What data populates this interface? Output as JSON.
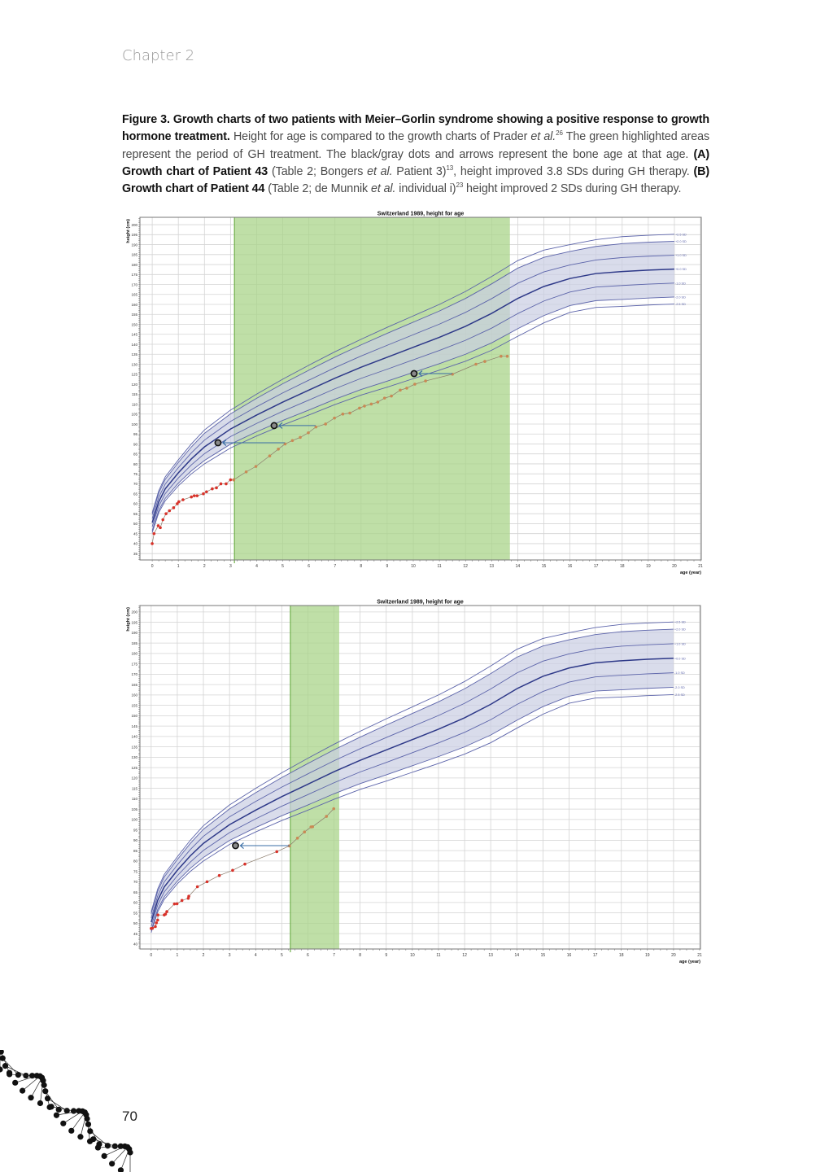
{
  "header": {
    "chapter": "Chapter 2"
  },
  "caption": {
    "segments": [
      {
        "text": "Figure 3. Growth charts of two patients with Meier–Gorlin syndrome showing a positive response to growth hormone treatment.",
        "style": "bold"
      },
      {
        "text": " Height for age is compared to the growth charts of Prader ",
        "style": "normal"
      },
      {
        "text": "et al.",
        "style": "italic"
      },
      {
        "text": "26",
        "style": "sup"
      },
      {
        "text": " The green highlighted areas represent the period of GH treatment. The black/gray dots and arrows represent the bone age at that age. ",
        "style": "normal"
      },
      {
        "text": "(A) Growth chart of Patient 43",
        "style": "bold"
      },
      {
        "text": " (Table 2; Bongers ",
        "style": "normal"
      },
      {
        "text": "et al.",
        "style": "italic"
      },
      {
        "text": " Patient 3)",
        "style": "normal"
      },
      {
        "text": "13",
        "style": "sup"
      },
      {
        "text": ", height improved 3.8 SDs during GH therapy. ",
        "style": "normal"
      },
      {
        "text": "(B) Growth chart of Patient 44",
        "style": "bold"
      },
      {
        "text": " (Table 2; de Munnik ",
        "style": "normal"
      },
      {
        "text": "et al.",
        "style": "italic"
      },
      {
        "text": " individual i)",
        "style": "normal"
      },
      {
        "text": "23",
        "style": "sup"
      },
      {
        "text": " height improved 2 SDs during GH therapy.",
        "style": "normal"
      }
    ]
  },
  "page_number": "70",
  "colors": {
    "treatment_band": "#a9d48a",
    "sd_band": "#c9cde2",
    "sd_line": "#5c64aa",
    "mean_line": "#2d3888",
    "pre_treatment_dots": "#d8322a",
    "treatment_dots": "#c98a55",
    "bone_age_marker": "#8a8a8a",
    "arrow": "#3a6ea5"
  },
  "chart_data": [
    {
      "panel": "A",
      "type": "line",
      "title": "Switzerland 1989, height for age",
      "xlabel": "age (year)",
      "ylabel": "height (cm)",
      "xlim": [
        -0.47,
        21.03
      ],
      "ylim": [
        31.8,
        203.7
      ],
      "xticks": [
        0,
        1,
        2,
        3,
        4,
        5,
        6,
        7,
        8,
        9,
        10,
        11,
        12,
        13,
        14,
        15,
        16,
        17,
        18,
        19,
        20,
        21
      ],
      "yticks": [
        35,
        40,
        45,
        50,
        55,
        60,
        65,
        70,
        75,
        80,
        85,
        90,
        95,
        100,
        105,
        110,
        115,
        120,
        125,
        130,
        135,
        140,
        145,
        150,
        155,
        160,
        165,
        170,
        175,
        180,
        185,
        190,
        195,
        200
      ],
      "grid": true,
      "gh_treatment_period": [
        3.15,
        13.7
      ],
      "reference": {
        "age": [
          0,
          0.25,
          0.5,
          1,
          1.5,
          2,
          3,
          4,
          5,
          6,
          7,
          8,
          9,
          10,
          11,
          12,
          13,
          14,
          15,
          16,
          17,
          18,
          19,
          20
        ],
        "mean_cm": [
          50.5,
          61,
          67.5,
          75.5,
          82.5,
          88.5,
          97.5,
          104.5,
          111,
          117,
          123,
          128.5,
          133.5,
          138.5,
          143.5,
          149,
          155.5,
          163,
          169,
          173,
          175.5,
          176.5,
          177.2,
          177.7
        ],
        "sd_cm": [
          2.0,
          2.2,
          2.4,
          2.6,
          3.0,
          3.4,
          3.8,
          4.2,
          4.6,
          5.0,
          5.3,
          5.6,
          6.0,
          6.3,
          6.6,
          7.0,
          7.4,
          7.6,
          7.3,
          6.8,
          6.8,
          7.0,
          7.0,
          7.0
        ],
        "sd_lines": [
          {
            "label": "+2.5 SD",
            "z": 2.5
          },
          {
            "label": "+2.0 SD",
            "z": 2.0
          },
          {
            "label": "+1.0 SD",
            "z": 1.0
          },
          {
            "label": "+0.0 SD",
            "z": 0
          },
          {
            "label": "-1.0 SD",
            "z": -1.0
          },
          {
            "label": "-2.0 SD",
            "z": -2.0
          },
          {
            "label": "-2.5 SD",
            "z": -2.5
          }
        ]
      },
      "pre_treatment": [
        [
          0,
          40
        ],
        [
          0.07,
          45
        ],
        [
          0.23,
          49
        ],
        [
          0.31,
          48
        ],
        [
          0.41,
          52
        ],
        [
          0.53,
          55
        ],
        [
          0.66,
          56.5
        ],
        [
          0.82,
          58
        ],
        [
          0.96,
          60
        ],
        [
          1.02,
          61
        ],
        [
          1.18,
          62
        ],
        [
          1.5,
          63.4
        ],
        [
          1.61,
          64
        ],
        [
          1.72,
          64
        ],
        [
          1.96,
          65
        ],
        [
          2.08,
          66
        ],
        [
          2.3,
          67.5
        ],
        [
          2.46,
          68
        ],
        [
          2.63,
          70
        ],
        [
          2.83,
          70
        ],
        [
          3.0,
          72
        ],
        [
          3.12,
          72
        ]
      ],
      "treatment": [
        [
          3.12,
          72
        ],
        [
          3.6,
          76
        ],
        [
          3.97,
          78.7
        ],
        [
          4.5,
          84
        ],
        [
          4.83,
          87.4
        ],
        [
          5.09,
          90
        ],
        [
          5.37,
          91.7
        ],
        [
          5.67,
          93.3
        ],
        [
          5.98,
          95.6
        ],
        [
          6.27,
          98.5
        ],
        [
          6.64,
          100
        ],
        [
          6.98,
          103
        ],
        [
          7.3,
          105
        ],
        [
          7.57,
          105.5
        ],
        [
          7.94,
          108
        ],
        [
          8.13,
          109
        ],
        [
          8.39,
          110
        ],
        [
          8.64,
          111
        ],
        [
          8.9,
          113
        ],
        [
          9.16,
          114
        ],
        [
          9.5,
          117
        ],
        [
          9.75,
          118
        ],
        [
          10.06,
          120
        ],
        [
          10.47,
          121.6
        ],
        [
          11.5,
          125
        ],
        [
          12.4,
          130
        ],
        [
          12.74,
          131.4
        ],
        [
          13.36,
          134
        ],
        [
          13.6,
          134
        ]
      ],
      "bone_age": [
        {
          "chronological_age": 5.08,
          "bone_age": 2.52,
          "height": 90.6
        },
        {
          "chronological_age": 6.26,
          "bone_age": 4.67,
          "height": 99.2
        },
        {
          "chronological_age": 11.5,
          "bone_age": 10.03,
          "height": 125.3
        }
      ]
    },
    {
      "panel": "B",
      "type": "line",
      "title": "Switzerland 1989, height for age",
      "xlabel": "age (year)",
      "ylabel": "height (cm)",
      "xlim": [
        -0.43,
        21.03
      ],
      "ylim": [
        37.6,
        203.1
      ],
      "xticks": [
        0,
        1,
        2,
        3,
        4,
        5,
        6,
        7,
        8,
        9,
        10,
        11,
        12,
        13,
        14,
        15,
        16,
        17,
        18,
        19,
        20,
        21
      ],
      "yticks": [
        40,
        45,
        50,
        55,
        60,
        65,
        70,
        75,
        80,
        85,
        90,
        95,
        100,
        105,
        110,
        115,
        120,
        125,
        130,
        135,
        140,
        145,
        150,
        155,
        160,
        165,
        170,
        175,
        180,
        185,
        190,
        195,
        200
      ],
      "grid": true,
      "gh_treatment_period": [
        5.33,
        7.2
      ],
      "reference": {
        "age": [
          0,
          0.25,
          0.5,
          1,
          1.5,
          2,
          3,
          4,
          5,
          6,
          7,
          8,
          9,
          10,
          11,
          12,
          13,
          14,
          15,
          16,
          17,
          18,
          19,
          20
        ],
        "mean_cm": [
          50.5,
          61,
          67.5,
          75.5,
          82.5,
          88.5,
          97.5,
          104.5,
          111,
          117,
          123,
          128.5,
          133.5,
          138.5,
          143.5,
          149,
          155.5,
          163,
          169,
          173,
          175.5,
          176.5,
          177.2,
          177.7
        ],
        "sd_cm": [
          2.0,
          2.2,
          2.4,
          2.6,
          3.0,
          3.4,
          3.8,
          4.2,
          4.6,
          5.0,
          5.3,
          5.6,
          6.0,
          6.3,
          6.6,
          7.0,
          7.4,
          7.6,
          7.3,
          6.8,
          6.8,
          7.0,
          7.0,
          7.0
        ],
        "sd_lines": [
          {
            "label": "+2.5 SD",
            "z": 2.5
          },
          {
            "label": "+2.0 SD",
            "z": 2.0
          },
          {
            "label": "+1.0 SD",
            "z": 1.0
          },
          {
            "label": "+0.0 SD",
            "z": 0
          },
          {
            "label": "-1.0 SD",
            "z": -1.0
          },
          {
            "label": "-2.0 SD",
            "z": -2.0
          },
          {
            "label": "-2.5 SD",
            "z": -2.5
          }
        ]
      },
      "pre_treatment": [
        [
          0,
          47.5
        ],
        [
          0.05,
          47.6
        ],
        [
          0.16,
          48.4
        ],
        [
          0.2,
          50.2
        ],
        [
          0.25,
          51.5
        ],
        [
          0.26,
          54
        ],
        [
          0.5,
          54
        ],
        [
          0.55,
          54.4
        ],
        [
          0.6,
          55.6
        ],
        [
          0.89,
          59.3
        ],
        [
          0.99,
          59.4
        ],
        [
          1.18,
          61
        ],
        [
          1.42,
          62
        ],
        [
          1.44,
          63
        ],
        [
          1.77,
          67.6
        ],
        [
          2.14,
          70
        ],
        [
          2.61,
          73
        ],
        [
          3.12,
          75.5
        ],
        [
          3.59,
          78.5
        ],
        [
          4.81,
          84.5
        ],
        [
          5.29,
          87.3
        ]
      ],
      "treatment": [
        [
          5.29,
          87.3
        ],
        [
          5.6,
          91
        ],
        [
          5.87,
          94
        ],
        [
          6.12,
          96.4
        ],
        [
          6.18,
          96.5
        ],
        [
          6.71,
          101.5
        ],
        [
          6.99,
          105.2
        ]
      ],
      "bone_age": [
        {
          "chronological_age": 5.29,
          "bone_age": 3.23,
          "height": 87.4
        }
      ]
    }
  ]
}
